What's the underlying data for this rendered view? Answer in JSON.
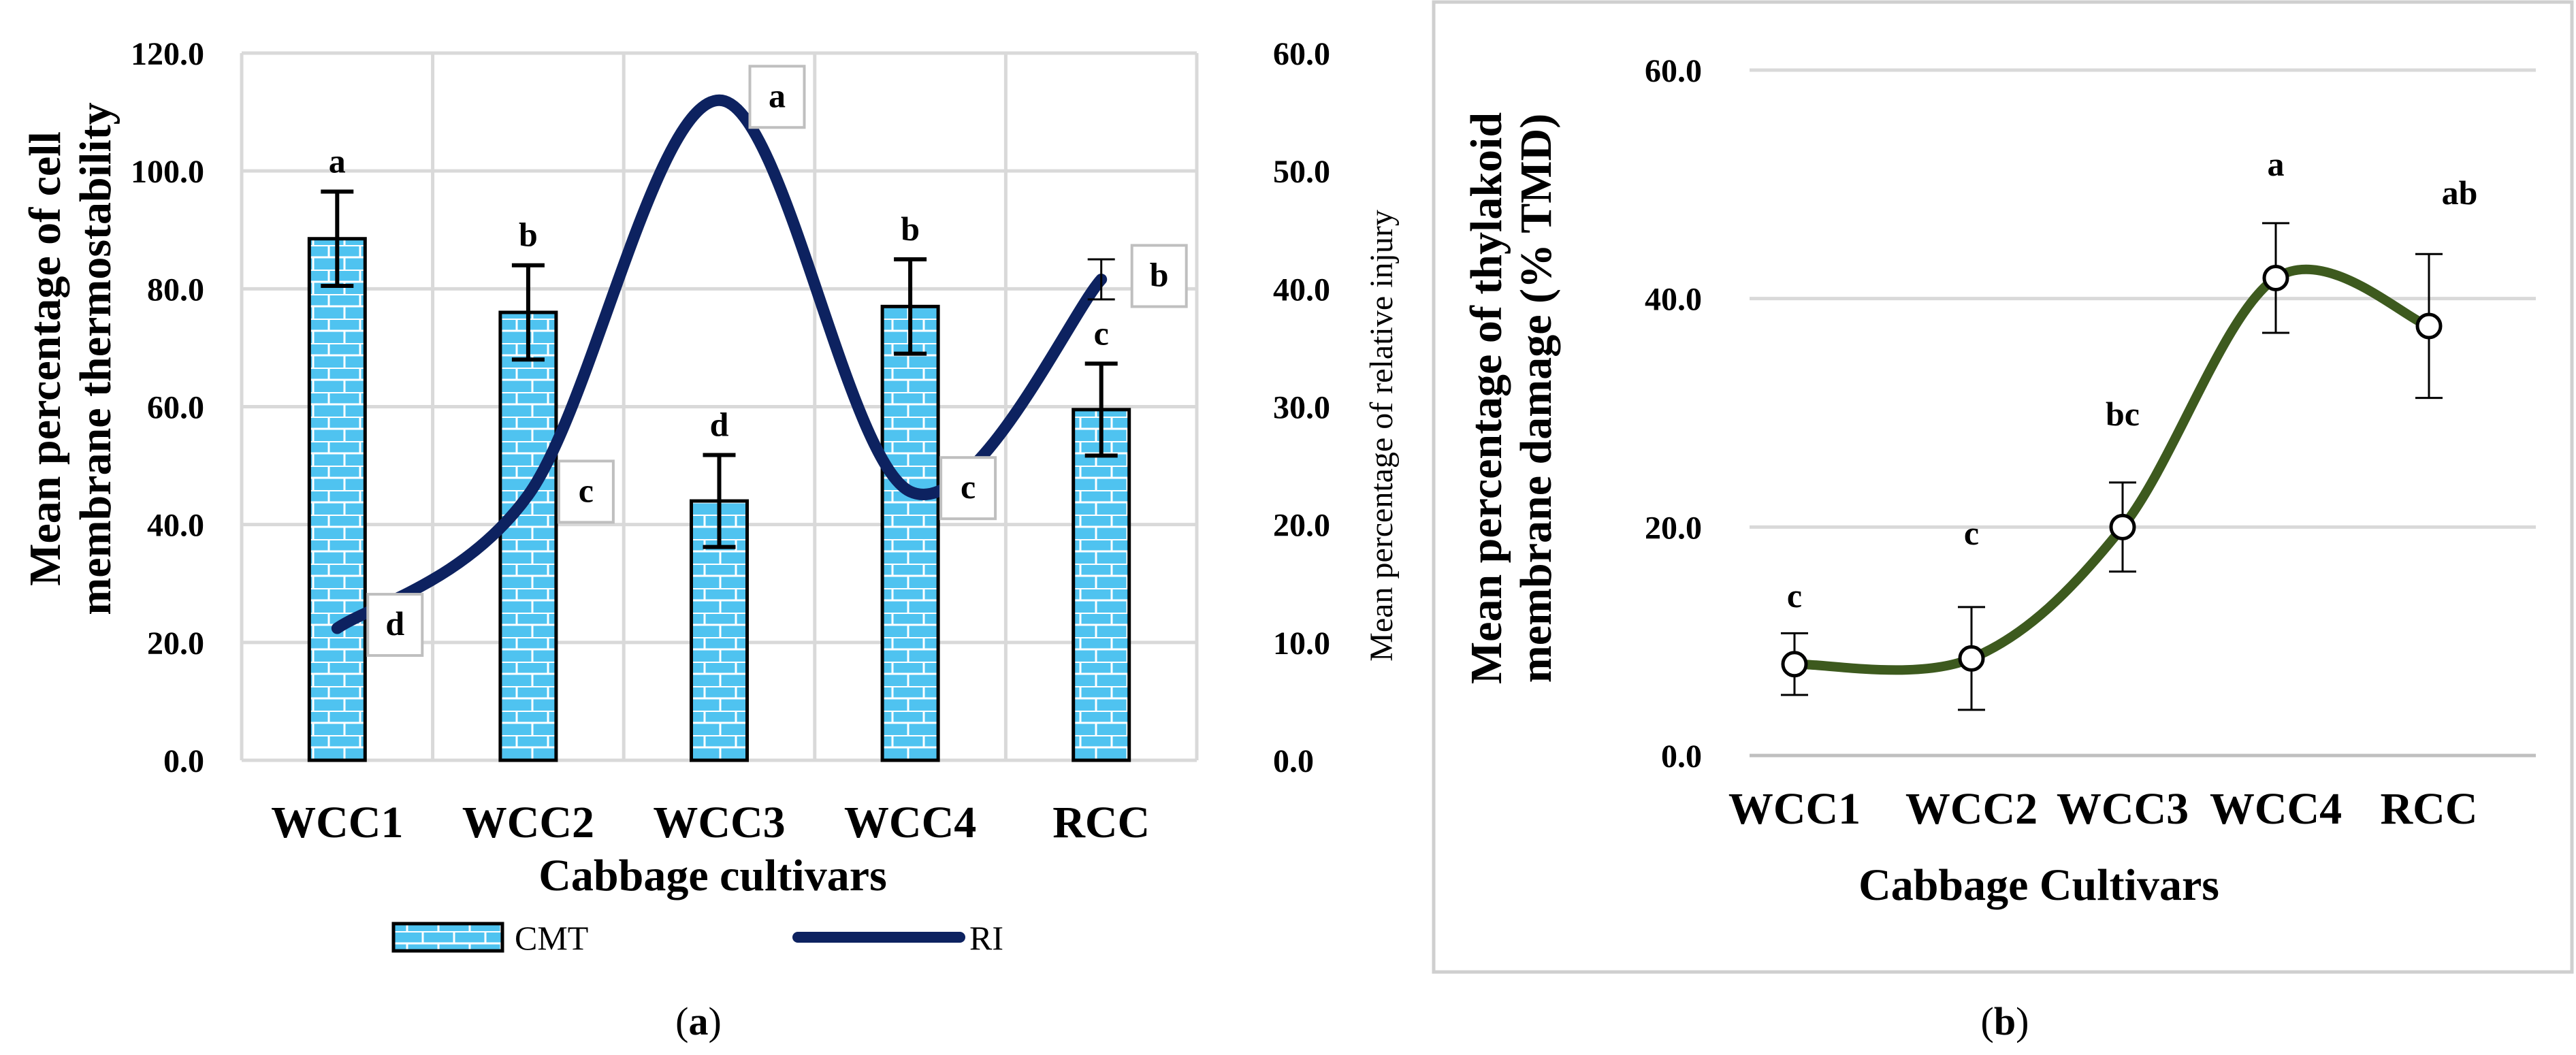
{
  "panel_a": {
    "caption_open": "(",
    "caption_letter": "a",
    "caption_close": ")",
    "chart_data": {
      "type": "bar+line",
      "categories": [
        "WCC1",
        "WCC2",
        "WCC3",
        "WCC4",
        "RCC"
      ],
      "xlabel": "Cabbage cultivars",
      "ylabel_line1": "Mean percentage of cell",
      "ylabel_line2": "membrane thermostability",
      "y2label": "Mean percentage of relative injury",
      "ylim": [
        0,
        120
      ],
      "y2lim": [
        0,
        60
      ],
      "yticks": [
        "0.0",
        "20.0",
        "40.0",
        "60.0",
        "80.0",
        "100.0",
        "120.0"
      ],
      "y2ticks": [
        "0.0",
        "10.0",
        "20.0",
        "30.0",
        "40.0",
        "50.0",
        "60.0"
      ],
      "grid": true,
      "series": [
        {
          "name": "CMT",
          "type": "bar",
          "axis": "left",
          "values": [
            88.5,
            76.0,
            44.0,
            77.0,
            59.5
          ],
          "errors": [
            8.0,
            8.0,
            7.8,
            8.0,
            7.8
          ],
          "labels": [
            "a",
            "b",
            "d",
            "b",
            "c"
          ],
          "color": "#4fc3f0"
        },
        {
          "name": "RI",
          "type": "line",
          "axis": "right",
          "values": [
            11.2,
            22.5,
            56.0,
            22.8,
            40.8
          ],
          "errors": [
            0,
            0,
            0,
            0,
            1.7
          ],
          "labels": [
            "d",
            "c",
            "a",
            "c",
            "b"
          ],
          "color": "#0d2260"
        }
      ],
      "legend": [
        "CMT",
        "RI"
      ],
      "legend_position": "bottom"
    }
  },
  "panel_b": {
    "caption_open": "(",
    "caption_letter": "b",
    "caption_close": ")",
    "chart_data": {
      "type": "line",
      "categories": [
        "WCC1",
        "WCC2",
        "WCC3",
        "WCC4",
        "RCC"
      ],
      "xlabel": "Cabbage Cultivars",
      "ylabel_line1": "Mean percentage of  thylakoid",
      "ylabel_line2": "membrane damage (% TMD)",
      "ylim": [
        0,
        60
      ],
      "yticks": [
        "0.0",
        "20.0",
        "40.0",
        "60.0"
      ],
      "grid": true,
      "series": [
        {
          "name": "TMD",
          "values": [
            8.0,
            8.5,
            20.0,
            41.8,
            37.6
          ],
          "errors": [
            2.7,
            4.5,
            3.9,
            4.8,
            6.3
          ],
          "labels": [
            "c",
            "c",
            "bc",
            "a",
            "ab"
          ],
          "color": "#3d5a1e"
        }
      ]
    }
  }
}
